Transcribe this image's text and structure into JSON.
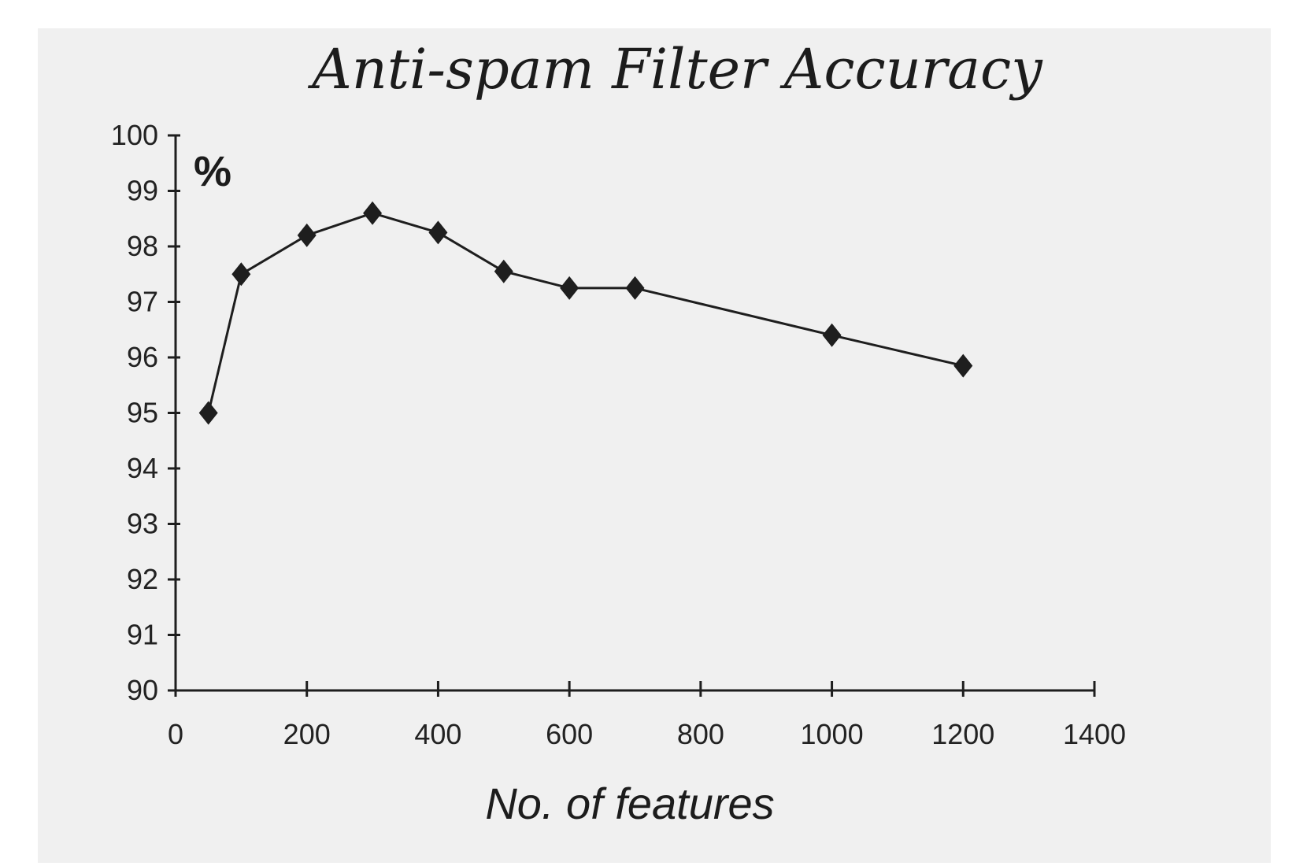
{
  "chart_data": {
    "type": "line",
    "title": "Anti-spam Filter Accuracy",
    "xlabel": "No. of features",
    "ylabel": "%",
    "xlim": [
      0,
      1400
    ],
    "ylim": [
      90,
      100
    ],
    "x_ticks": [
      0,
      200,
      400,
      600,
      800,
      1000,
      1200,
      1400
    ],
    "y_ticks": [
      90,
      91,
      92,
      93,
      94,
      95,
      96,
      97,
      98,
      99,
      100
    ],
    "grid": false,
    "legend": "none",
    "series": [
      {
        "color": "#1e1e1e",
        "marker": "diamond",
        "points": [
          {
            "x": 50,
            "y": 95.0
          },
          {
            "x": 100,
            "y": 97.5
          },
          {
            "x": 200,
            "y": 98.2
          },
          {
            "x": 300,
            "y": 98.6
          },
          {
            "x": 400,
            "y": 98.25
          },
          {
            "x": 500,
            "y": 97.55
          },
          {
            "x": 600,
            "y": 97.25
          },
          {
            "x": 700,
            "y": 97.25
          },
          {
            "x": 1000,
            "y": 96.4
          },
          {
            "x": 1200,
            "y": 95.85
          }
        ]
      }
    ]
  }
}
